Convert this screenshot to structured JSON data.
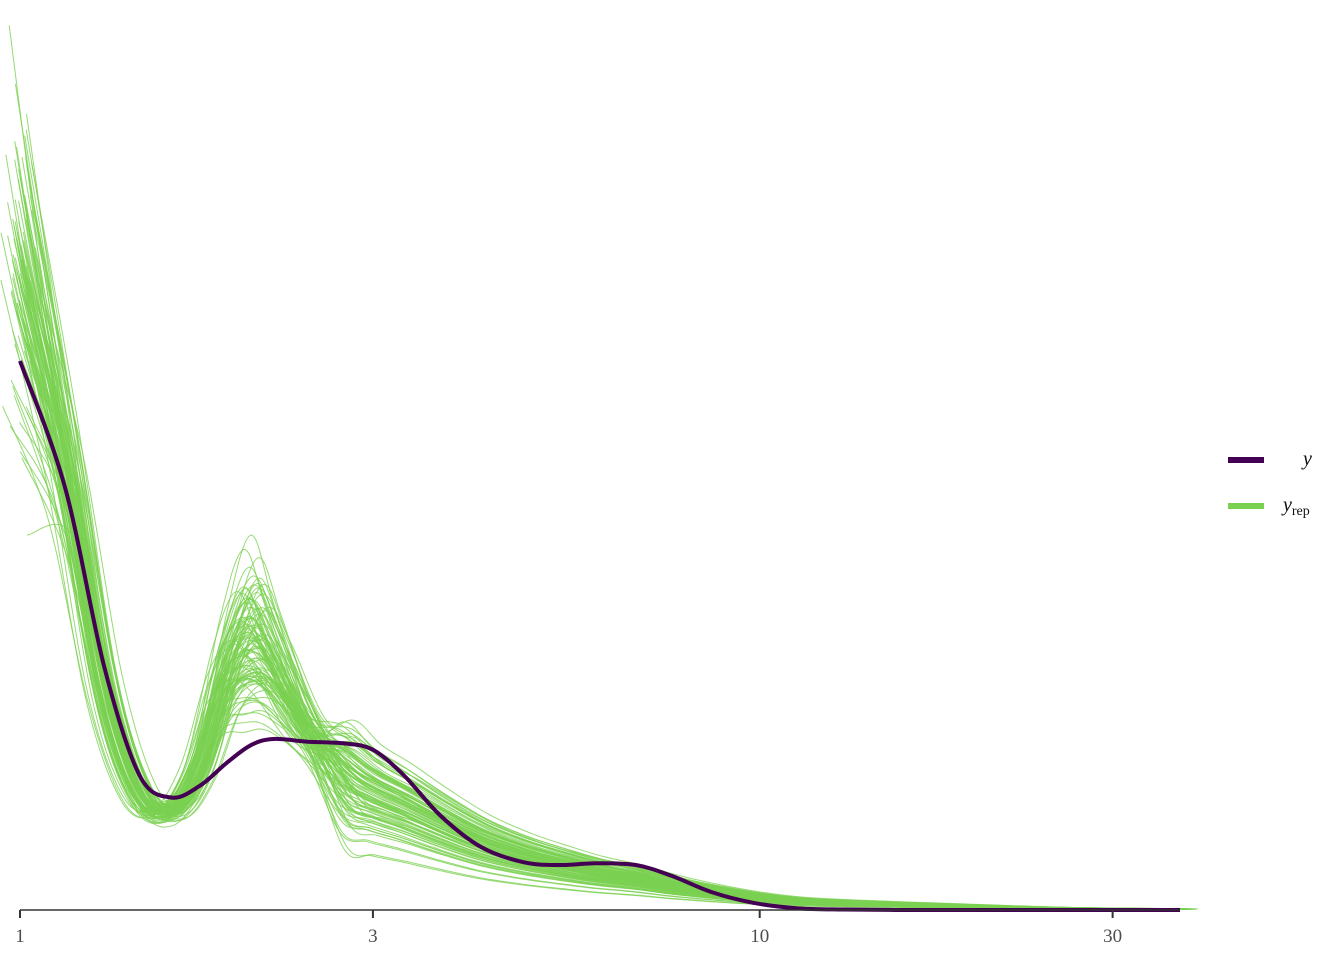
{
  "chart_data": {
    "type": "line",
    "xscale": "log",
    "xlim": [
      1,
      37
    ],
    "ylim": [
      0,
      1
    ],
    "grid": false,
    "legend_position": "right",
    "x_ticks": [
      {
        "value": 1,
        "label": "1"
      },
      {
        "value": 3,
        "label": "3"
      },
      {
        "value": 10,
        "label": "10"
      },
      {
        "value": 30,
        "label": "30"
      }
    ],
    "series": [
      {
        "name": "y",
        "color": "#440154",
        "x": [
          1,
          1.15,
          1.3,
          1.45,
          1.6,
          1.75,
          1.9,
          2.05,
          2.2,
          2.45,
          2.75,
          3.0,
          3.3,
          3.7,
          4.2,
          4.8,
          5.4,
          6.0,
          6.8,
          7.6,
          8.6,
          9.8,
          11.2,
          13,
          16,
          20,
          26,
          37
        ],
        "values": [
          0.61,
          0.47,
          0.27,
          0.15,
          0.125,
          0.138,
          0.163,
          0.183,
          0.19,
          0.187,
          0.185,
          0.178,
          0.15,
          0.105,
          0.07,
          0.053,
          0.05,
          0.052,
          0.05,
          0.038,
          0.02,
          0.008,
          0.002,
          0.0005,
          0,
          0,
          0,
          0
        ]
      },
      {
        "name": "y_rep",
        "label_main": "y",
        "label_sub": "rep",
        "color": "#7ad151",
        "x": [
          1,
          1.15,
          1.3,
          1.45,
          1.6,
          1.75,
          1.9,
          2.05,
          2.2,
          2.45,
          2.75,
          3.0,
          3.3,
          3.7,
          4.2,
          4.8,
          5.4,
          6.0,
          6.8,
          7.6,
          8.6,
          9.8,
          11.2,
          13,
          16,
          20,
          26,
          37
        ],
        "mean": [
          0.72,
          0.5,
          0.25,
          0.13,
          0.11,
          0.16,
          0.26,
          0.3,
          0.27,
          0.2,
          0.15,
          0.13,
          0.115,
          0.095,
          0.075,
          0.06,
          0.05,
          0.042,
          0.035,
          0.027,
          0.02,
          0.014,
          0.01,
          0.008,
          0.006,
          0.004,
          0.002,
          0.001
        ],
        "count": 100
      }
    ]
  }
}
